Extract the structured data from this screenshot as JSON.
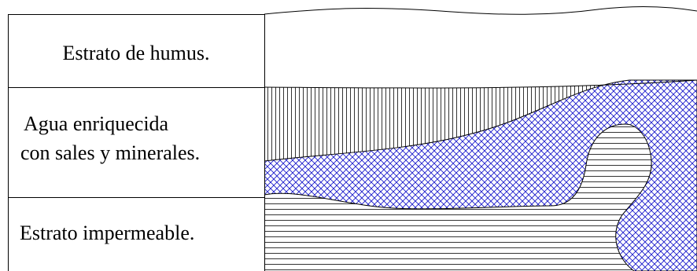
{
  "rows": [
    {
      "label": "Estrato de humus."
    },
    {
      "lines": [
        "Agua enriquecida",
        "con sales y minerales."
      ]
    },
    {
      "label": "Estrato impermeable."
    }
  ]
}
